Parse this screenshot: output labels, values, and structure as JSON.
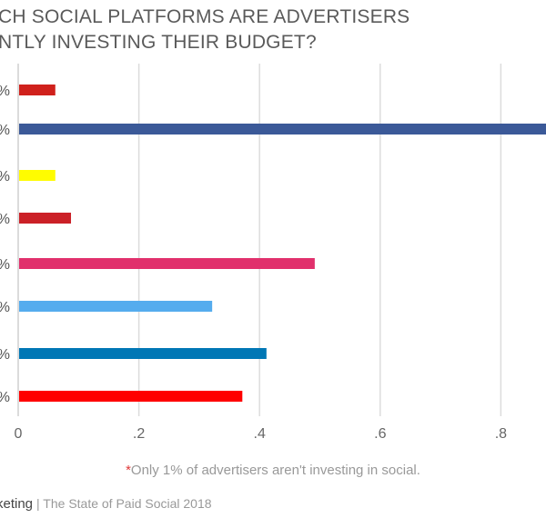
{
  "chart_data": {
    "type": "bar",
    "orientation": "horizontal",
    "title_lines": [
      "CH SOCIAL PLATFORMS ARE ADVERTISERS",
      "NTLY INVESTING THEIR BUDGET?"
    ],
    "category_labels": [
      "%",
      "%",
      "%",
      "%",
      "%",
      "%",
      "%",
      "%"
    ],
    "values": [
      0.06,
      0.89,
      0.06,
      0.086,
      0.49,
      0.32,
      0.41,
      0.37
    ],
    "colors": [
      "#d0211c",
      "#3b5998",
      "#fffc00",
      "#cb2027",
      "#e1306c",
      "#55acee",
      "#0077b5",
      "#ff0000"
    ],
    "xlim": [
      0,
      0.9
    ],
    "xticks": [
      0,
      0.2,
      0.4,
      0.6,
      0.8
    ],
    "xtick_labels": [
      "0",
      ".2",
      ".4",
      ".6",
      ".8"
    ],
    "grid": true,
    "legend": "none"
  },
  "footnote": {
    "asterisk": "*",
    "text": "Only 1% of advertisers aren't investing in social."
  },
  "source": {
    "brand": "keting",
    "text": "| The State of Paid Social 2018"
  }
}
